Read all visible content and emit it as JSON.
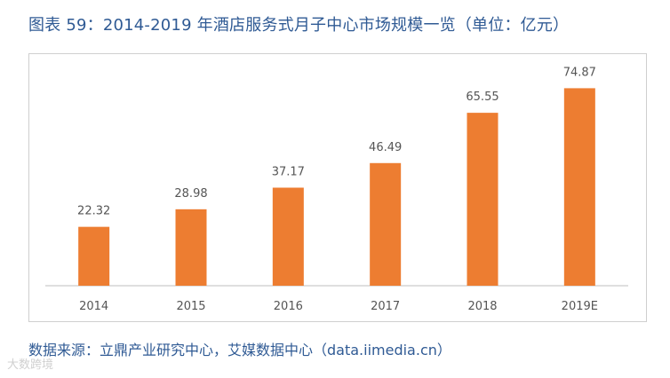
{
  "title": "图表 59：2014-2019 年酒店服务式月子中心市场规模一览（单位：亿元）",
  "source": "数据来源：立鼎产业研究中心，艾媒数据中心（data.iimedia.cn）",
  "watermark": "大数跨境",
  "colors": {
    "bar": "#ED7D31",
    "title": "#2f5a94",
    "axis": "#bfbfbf",
    "text": "#555555"
  },
  "chart_data": {
    "type": "bar",
    "title": "2014-2019 年酒店服务式月子中心市场规模一览（单位：亿元）",
    "categories": [
      "2014",
      "2015",
      "2016",
      "2017",
      "2018",
      "2019E"
    ],
    "values": [
      22.32,
      28.98,
      37.17,
      46.49,
      65.55,
      74.87
    ],
    "data_labels": [
      "22.32",
      "28.98",
      "37.17",
      "46.49",
      "65.55",
      "74.87"
    ],
    "xlabel": "",
    "ylabel": "",
    "ylim": [
      0,
      80
    ],
    "grid": false,
    "legend": "none"
  }
}
